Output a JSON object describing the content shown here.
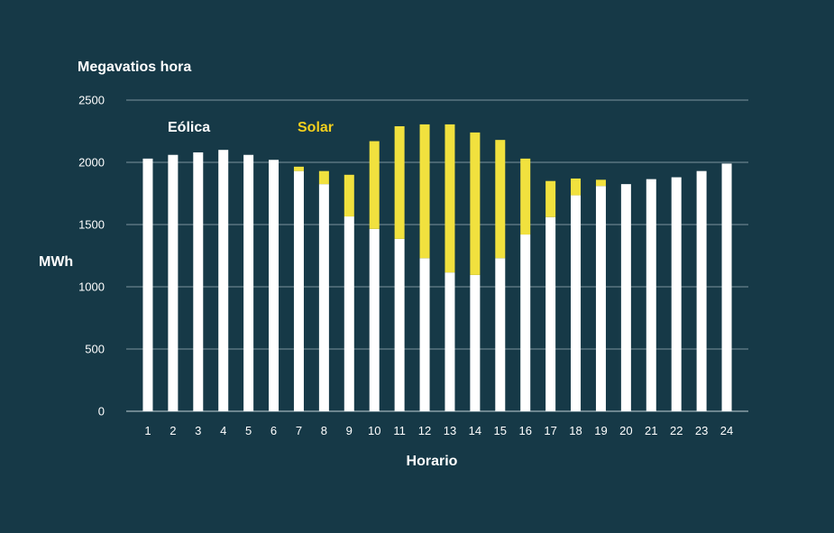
{
  "chart_data": {
    "type": "bar",
    "stacked": true,
    "unit_title": "Megavatios hora",
    "ylabel": "MWh",
    "xlabel": "Horario",
    "ylim": [
      0,
      2500
    ],
    "yticks": [
      0,
      500,
      1000,
      1500,
      2000,
      2500
    ],
    "grid": true,
    "categories": [
      "1",
      "2",
      "3",
      "4",
      "5",
      "6",
      "7",
      "8",
      "9",
      "10",
      "11",
      "12",
      "13",
      "14",
      "15",
      "16",
      "17",
      "18",
      "19",
      "20",
      "21",
      "22",
      "23",
      "24"
    ],
    "series": [
      {
        "name": "Eólica",
        "color": "#ffffff",
        "values": [
          2030,
          2060,
          2080,
          2100,
          2060,
          2020,
          1930,
          1825,
          1565,
          1465,
          1385,
          1230,
          1115,
          1095,
          1230,
          1420,
          1560,
          1735,
          1810,
          1825,
          1865,
          1880,
          1930,
          1990
        ]
      },
      {
        "name": "Solar",
        "color": "#f1e13e",
        "values": [
          0,
          0,
          0,
          0,
          0,
          0,
          35,
          105,
          335,
          705,
          905,
          1075,
          1190,
          1145,
          950,
          610,
          290,
          135,
          50,
          0,
          0,
          0,
          0,
          0
        ]
      }
    ]
  },
  "colors": {
    "background": "#163947",
    "grid": "#9fb3ba",
    "eolica": "#ffffff",
    "solar": "#f1e13e",
    "solar_label": "#f2cf1d"
  }
}
